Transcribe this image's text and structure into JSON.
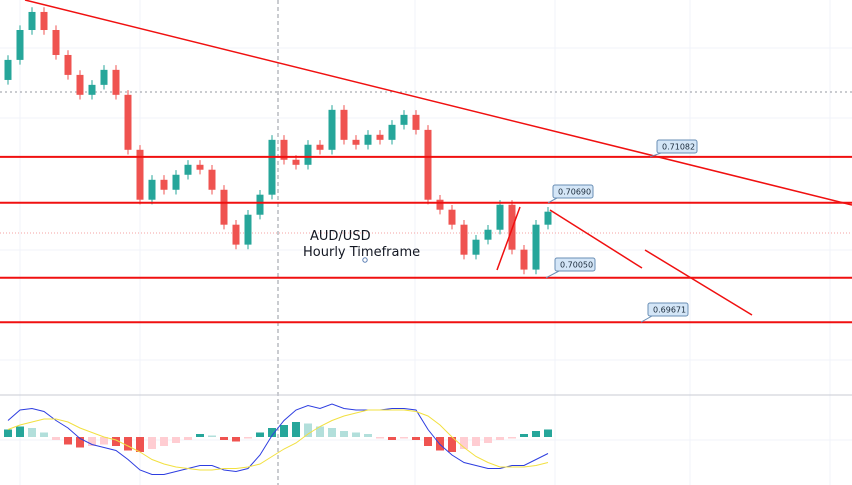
{
  "chart_data": [
    {
      "type": "candlestick",
      "title": "AUD/USD",
      "subtitle": "Hourly Timeframe",
      "ylim": [
        0.6905,
        0.7242
      ],
      "up_color": "#26a69a",
      "down_color": "#ef5350",
      "level_color": "#f01010",
      "open": [
        0.71738,
        0.71909,
        0.72164,
        0.72318,
        0.72164,
        0.71951,
        0.71781,
        0.71611,
        0.71696,
        0.71824,
        0.71611,
        0.71142,
        0.70716,
        0.70886,
        0.70801,
        0.70929,
        0.71014,
        0.70972,
        0.70801,
        0.70503,
        0.70333,
        0.70588,
        0.70759,
        0.71227,
        0.71057,
        0.71014,
        0.71185,
        0.71142,
        0.71483,
        0.71227,
        0.71185,
        0.7127,
        0.71227,
        0.71355,
        0.7144,
        0.71312,
        0.70716,
        0.70631,
        0.70503,
        0.70247,
        0.70375,
        0.7046,
        0.70673,
        0.7029,
        0.7012,
        0.70503
      ],
      "high": [
        0.71949,
        0.72204,
        0.72358,
        0.72358,
        0.72204,
        0.71991,
        0.71821,
        0.71736,
        0.71864,
        0.71864,
        0.71651,
        0.71182,
        0.70926,
        0.70926,
        0.70969,
        0.71054,
        0.71054,
        0.71012,
        0.70841,
        0.70543,
        0.70628,
        0.70799,
        0.71267,
        0.71267,
        0.71097,
        0.71225,
        0.71225,
        0.71523,
        0.71523,
        0.71267,
        0.7131,
        0.7131,
        0.71395,
        0.7148,
        0.7148,
        0.71352,
        0.70756,
        0.70671,
        0.70543,
        0.70415,
        0.705,
        0.70713,
        0.70713,
        0.7033,
        0.70543,
        0.70654
      ],
      "low": [
        0.71698,
        0.71869,
        0.72124,
        0.72124,
        0.71911,
        0.71741,
        0.71571,
        0.71571,
        0.71656,
        0.71571,
        0.71102,
        0.70676,
        0.70676,
        0.70761,
        0.70761,
        0.70889,
        0.70932,
        0.70761,
        0.70463,
        0.70293,
        0.70293,
        0.70548,
        0.70719,
        0.71017,
        0.70974,
        0.70974,
        0.71102,
        0.71102,
        0.71187,
        0.71145,
        0.71145,
        0.71187,
        0.71187,
        0.71315,
        0.71272,
        0.70676,
        0.70591,
        0.70463,
        0.70207,
        0.70207,
        0.70335,
        0.7042,
        0.7025,
        0.7008,
        0.7008,
        0.70463
      ],
      "close": [
        0.71909,
        0.72164,
        0.72318,
        0.72164,
        0.71951,
        0.71781,
        0.71611,
        0.71696,
        0.71824,
        0.71611,
        0.71142,
        0.70716,
        0.70886,
        0.70801,
        0.70929,
        0.71014,
        0.70972,
        0.70801,
        0.70503,
        0.70333,
        0.70588,
        0.70759,
        0.71227,
        0.71057,
        0.71014,
        0.71185,
        0.71142,
        0.71483,
        0.71227,
        0.71185,
        0.7127,
        0.71227,
        0.71355,
        0.7144,
        0.71312,
        0.70716,
        0.70631,
        0.70503,
        0.70247,
        0.70375,
        0.7046,
        0.70673,
        0.7029,
        0.7012,
        0.70503,
        0.70614
      ],
      "levels": [
        0.71082,
        {
          "value": 0.7069,
          "label": "0.70690"
        },
        {
          "value": 0.7005,
          "label": "0.70050"
        },
        0.69671
      ]
    },
    {
      "type": "macd",
      "ylim": [
        -3,
        3
      ],
      "histogram": [
        0.5,
        0.7,
        0.6,
        0.3,
        -0.2,
        -0.5,
        -0.7,
        -0.6,
        -0.5,
        -0.6,
        -0.9,
        -1.0,
        -0.8,
        -0.6,
        -0.4,
        -0.2,
        0.2,
        0.1,
        -0.2,
        -0.3,
        -0.1,
        0.3,
        0.6,
        0.8,
        1.0,
        0.9,
        0.7,
        0.6,
        0.4,
        0.3,
        0.2,
        -0.1,
        -0.2,
        -0.1,
        -0.2,
        -0.6,
        -0.9,
        -1.0,
        -0.8,
        -0.6,
        -0.4,
        -0.2,
        -0.1,
        0.2,
        0.4,
        0.5
      ],
      "series": [
        {
          "color": "#2d3de0",
          "values": [
            1.1,
            1.8,
            1.9,
            1.7,
            1.1,
            0.6,
            -0.1,
            -0.5,
            -0.7,
            -0.9,
            -1.5,
            -2.2,
            -2.5,
            -2.5,
            -2.3,
            -2.1,
            -1.9,
            -1.9,
            -2.2,
            -2.3,
            -2.1,
            -1.2,
            0.1,
            1.1,
            1.8,
            2.1,
            1.9,
            2.2,
            1.9,
            1.8,
            1.8,
            1.8,
            1.9,
            1.9,
            1.8,
            0.5,
            -0.5,
            -1.2,
            -1.7,
            -1.9,
            -2.1,
            -2.1,
            -1.9,
            -1.9,
            -1.5,
            -1.1
          ]
        },
        {
          "color": "#f2e040",
          "values": [
            0.5,
            0.8,
            1.0,
            1.2,
            1.2,
            1.0,
            0.6,
            0.3,
            0.0,
            -0.2,
            -0.6,
            -1.0,
            -1.5,
            -1.8,
            -2.0,
            -2.1,
            -2.2,
            -2.2,
            -2.1,
            -2.1,
            -2.0,
            -1.8,
            -1.3,
            -0.8,
            -0.4,
            0.2,
            0.7,
            1.1,
            1.4,
            1.6,
            1.8,
            1.8,
            1.8,
            1.8,
            1.7,
            1.4,
            0.8,
            0.0,
            -0.7,
            -1.3,
            -1.7,
            -2.0,
            -2.0,
            -2.0,
            -1.9,
            -1.7
          ]
        }
      ]
    }
  ]
}
